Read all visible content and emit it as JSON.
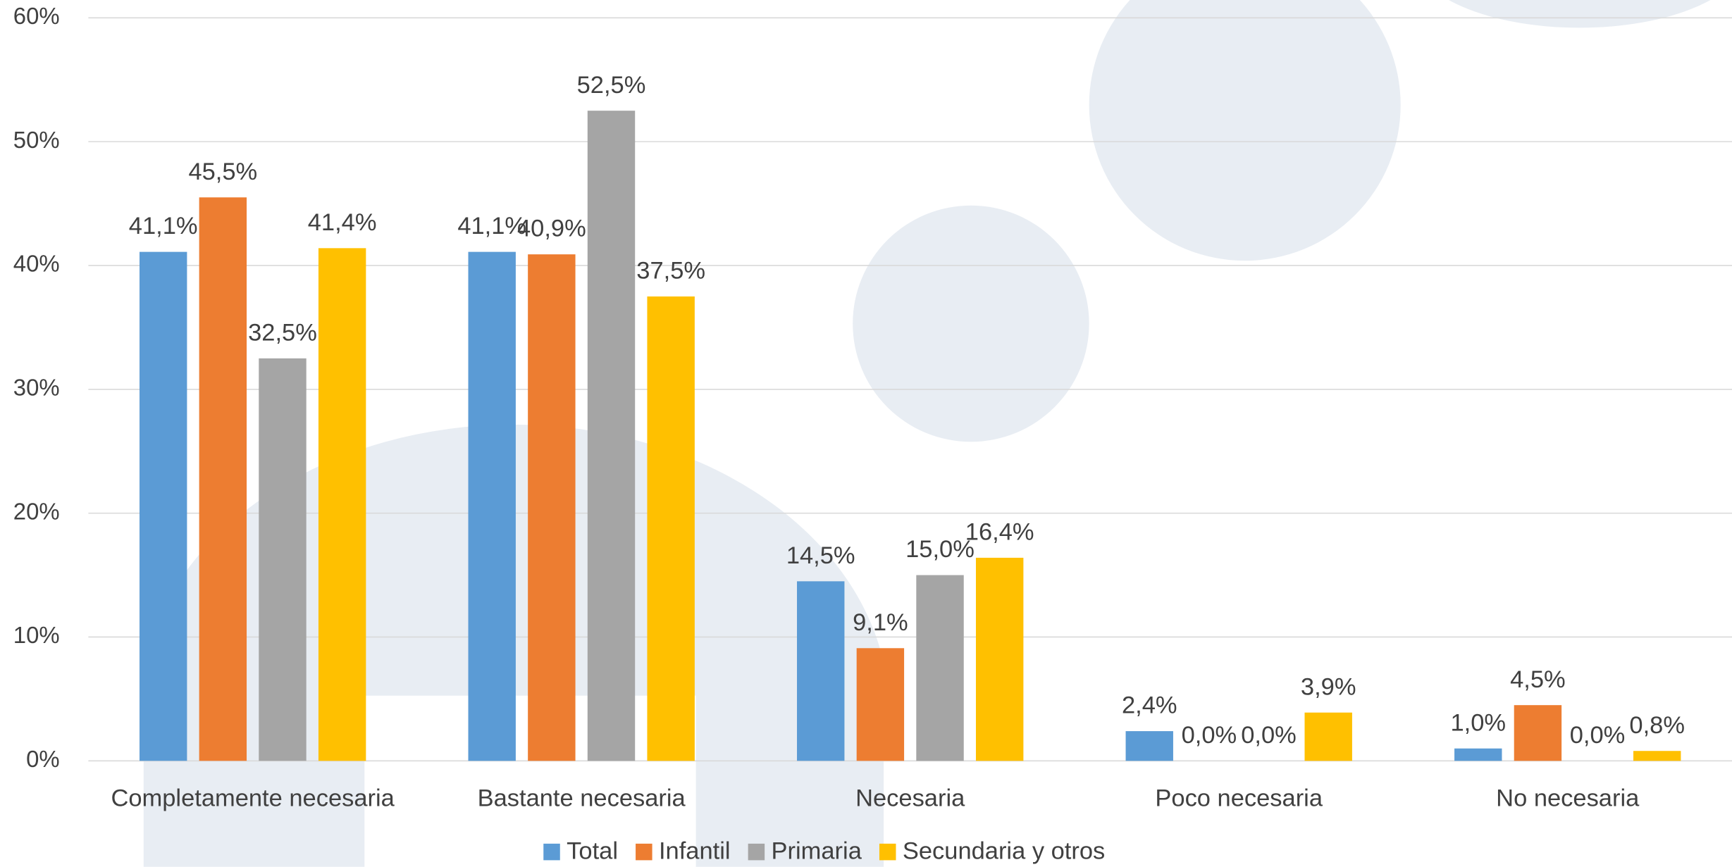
{
  "chart_data": {
    "type": "bar",
    "categories": [
      "Completamente necesaria",
      "Bastante necesaria",
      "Necesaria",
      "Poco necesaria",
      "No necesaria"
    ],
    "series": [
      {
        "name": "Total",
        "color": "#5b9bd5",
        "values": [
          41.1,
          41.1,
          14.5,
          2.4,
          1.0
        ],
        "value_labels": [
          "41,1%",
          "41,1%",
          "14,5%",
          "2,4%",
          "1,0%"
        ]
      },
      {
        "name": "Infantil",
        "color": "#ed7d31",
        "values": [
          45.5,
          40.9,
          9.1,
          0.0,
          4.5
        ],
        "value_labels": [
          "45,5%",
          "40,9%",
          "9,1%",
          "0,0%",
          "4,5%"
        ]
      },
      {
        "name": "Primaria",
        "color": "#a5a5a5",
        "values": [
          32.5,
          52.5,
          15.0,
          0.0,
          0.0
        ],
        "value_labels": [
          "32,5%",
          "52,5%",
          "15,0%",
          "0,0%",
          "0,0%"
        ]
      },
      {
        "name": "Secundaria y otros",
        "color": "#ffc000",
        "values": [
          41.4,
          37.5,
          16.4,
          3.9,
          0.8
        ],
        "value_labels": [
          "41,4%",
          "37,5%",
          "16,4%",
          "3,9%",
          "0,8%"
        ]
      }
    ],
    "ylim": [
      0,
      60
    ],
    "yticks": [
      {
        "value": 0,
        "label": "0%"
      },
      {
        "value": 10,
        "label": "10%"
      },
      {
        "value": 20,
        "label": "20%"
      },
      {
        "value": 30,
        "label": "30%"
      },
      {
        "value": 40,
        "label": "40%"
      },
      {
        "value": 50,
        "label": "50%"
      },
      {
        "value": 60,
        "label": "60%"
      }
    ],
    "grid": true,
    "legend": "bottom"
  }
}
